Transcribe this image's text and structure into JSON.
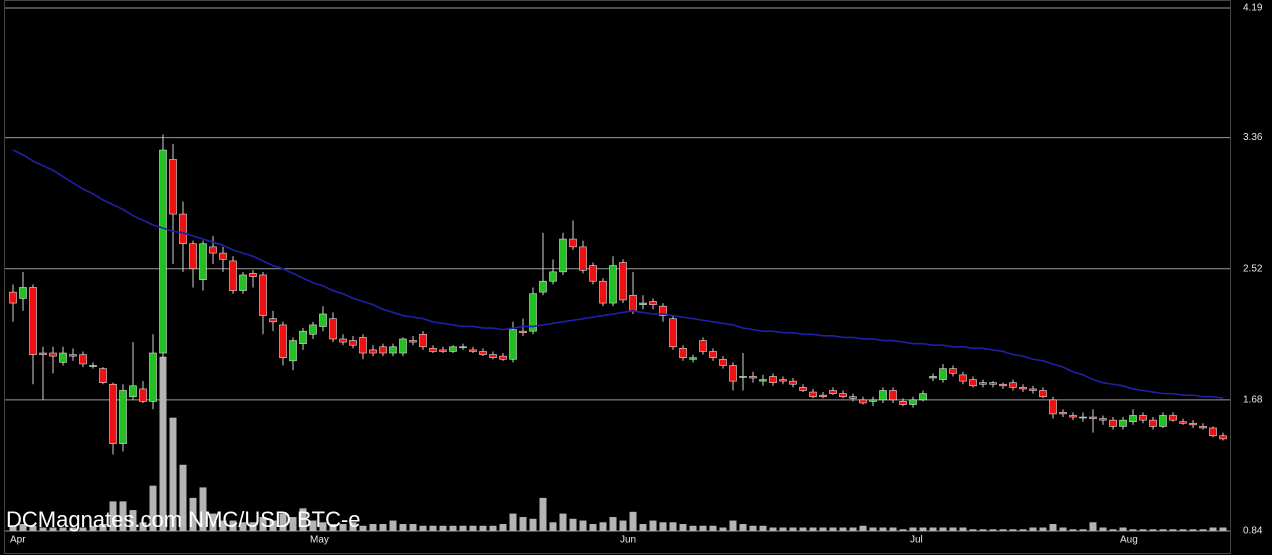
{
  "chart_data": {
    "type": "candlestick",
    "watermark": "DCMagnates.com  NMC/USD BTC-e",
    "categories": [
      "Apr",
      null,
      null,
      null,
      null,
      null,
      null,
      null,
      null,
      null,
      null,
      null,
      null,
      null,
      null,
      null,
      null,
      null,
      null,
      null,
      null,
      null,
      null,
      null,
      null,
      null,
      null,
      null,
      null,
      null,
      "May",
      null,
      null,
      null,
      null,
      null,
      null,
      null,
      null,
      null,
      null,
      null,
      null,
      null,
      null,
      null,
      null,
      null,
      null,
      null,
      null,
      null,
      null,
      null,
      null,
      null,
      null,
      null,
      null,
      null,
      null,
      "Jun",
      null,
      null,
      null,
      null,
      null,
      null,
      null,
      null,
      null,
      null,
      null,
      null,
      null,
      null,
      null,
      null,
      null,
      null,
      null,
      null,
      null,
      null,
      null,
      null,
      null,
      null,
      null,
      null,
      "Jul",
      null,
      null,
      null,
      null,
      null,
      null,
      null,
      null,
      null,
      null,
      null,
      null,
      null,
      null,
      null,
      null,
      null,
      null,
      null,
      null,
      "Aug",
      null,
      null,
      null,
      null,
      null,
      null,
      null,
      null,
      null,
      null
    ],
    "candles": [
      [
        2.37,
        2.42,
        2.18,
        2.3
      ],
      [
        2.33,
        2.5,
        2.25,
        2.4
      ],
      [
        2.4,
        2.42,
        1.78,
        1.97
      ],
      [
        1.98,
        2.02,
        1.68,
        1.97
      ],
      [
        1.98,
        2.02,
        1.85,
        1.96
      ],
      [
        1.92,
        2.02,
        1.9,
        1.98
      ],
      [
        1.97,
        2.01,
        1.93,
        1.96
      ],
      [
        1.97,
        1.99,
        1.89,
        1.91
      ],
      [
        1.9,
        1.92,
        1.88,
        1.9
      ],
      [
        1.88,
        1.89,
        1.78,
        1.79
      ],
      [
        1.78,
        1.79,
        1.33,
        1.4
      ],
      [
        1.4,
        1.78,
        1.35,
        1.74
      ],
      [
        1.7,
        2.05,
        1.68,
        1.77
      ],
      [
        1.75,
        1.8,
        1.66,
        1.67
      ],
      [
        1.67,
        2.1,
        1.62,
        1.98
      ],
      [
        1.98,
        3.38,
        1.95,
        3.28
      ],
      [
        3.22,
        3.32,
        2.55,
        2.87
      ],
      [
        2.87,
        2.95,
        2.5,
        2.68
      ],
      [
        2.68,
        2.7,
        2.4,
        2.52
      ],
      [
        2.45,
        2.7,
        2.38,
        2.68
      ],
      [
        2.66,
        2.73,
        2.55,
        2.62
      ],
      [
        2.62,
        2.66,
        2.5,
        2.58
      ],
      [
        2.57,
        2.6,
        2.36,
        2.38
      ],
      [
        2.38,
        2.5,
        2.36,
        2.48
      ],
      [
        2.49,
        2.51,
        2.4,
        2.47
      ],
      [
        2.48,
        2.5,
        2.1,
        2.22
      ],
      [
        2.2,
        2.25,
        2.12,
        2.18
      ],
      [
        2.16,
        2.18,
        1.9,
        1.95
      ],
      [
        1.93,
        2.08,
        1.87,
        2.06
      ],
      [
        2.04,
        2.14,
        2.0,
        2.12
      ],
      [
        2.1,
        2.18,
        2.07,
        2.16
      ],
      [
        2.15,
        2.28,
        2.12,
        2.23
      ],
      [
        2.2,
        2.24,
        2.05,
        2.07
      ],
      [
        2.07,
        2.1,
        2.03,
        2.05
      ],
      [
        2.06,
        2.09,
        2.01,
        2.03
      ],
      [
        2.08,
        2.1,
        1.94,
        1.98
      ],
      [
        2.0,
        2.03,
        1.96,
        1.98
      ],
      [
        2.02,
        2.04,
        1.96,
        1.98
      ],
      [
        1.98,
        2.04,
        1.96,
        2.02
      ],
      [
        1.98,
        2.08,
        1.96,
        2.07
      ],
      [
        2.06,
        2.09,
        2.03,
        2.05
      ],
      [
        2.1,
        2.12,
        2.0,
        2.02
      ],
      [
        2.01,
        2.03,
        1.98,
        1.99
      ],
      [
        2.0,
        2.02,
        1.98,
        1.99
      ],
      [
        1.99,
        2.03,
        1.98,
        2.02
      ],
      [
        2.02,
        2.04,
        2.0,
        2.02
      ],
      [
        2.0,
        2.02,
        1.98,
        1.99
      ],
      [
        1.99,
        2.01,
        1.96,
        1.97
      ],
      [
        1.97,
        1.99,
        1.94,
        1.95
      ],
      [
        1.96,
        1.98,
        1.93,
        1.94
      ],
      [
        1.94,
        2.18,
        1.92,
        2.13
      ],
      [
        2.12,
        2.2,
        2.09,
        2.11
      ],
      [
        2.12,
        2.4,
        2.1,
        2.36
      ],
      [
        2.37,
        2.75,
        2.35,
        2.44
      ],
      [
        2.44,
        2.58,
        2.42,
        2.5
      ],
      [
        2.5,
        2.75,
        2.48,
        2.71
      ],
      [
        2.71,
        2.83,
        2.64,
        2.66
      ],
      [
        2.66,
        2.7,
        2.49,
        2.51
      ],
      [
        2.54,
        2.56,
        2.42,
        2.44
      ],
      [
        2.44,
        2.46,
        2.28,
        2.3
      ],
      [
        2.3,
        2.6,
        2.28,
        2.54
      ],
      [
        2.56,
        2.58,
        2.3,
        2.32
      ],
      [
        2.35,
        2.5,
        2.23,
        2.25
      ],
      [
        2.29,
        2.35,
        2.26,
        2.3
      ],
      [
        2.31,
        2.33,
        2.26,
        2.29
      ],
      [
        2.28,
        2.3,
        2.18,
        2.22
      ],
      [
        2.2,
        2.22,
        2.0,
        2.02
      ],
      [
        2.01,
        2.03,
        1.93,
        1.95
      ],
      [
        1.94,
        1.97,
        1.92,
        1.95
      ],
      [
        2.06,
        2.08,
        1.97,
        1.99
      ],
      [
        1.99,
        2.01,
        1.93,
        1.95
      ],
      [
        1.94,
        1.96,
        1.88,
        1.9
      ],
      [
        1.9,
        1.92,
        1.74,
        1.8
      ],
      [
        1.83,
        1.98,
        1.74,
        1.83
      ],
      [
        1.83,
        1.86,
        1.79,
        1.82
      ],
      [
        1.8,
        1.84,
        1.77,
        1.81
      ],
      [
        1.83,
        1.85,
        1.77,
        1.79
      ],
      [
        1.81,
        1.83,
        1.78,
        1.8
      ],
      [
        1.8,
        1.82,
        1.76,
        1.78
      ],
      [
        1.76,
        1.78,
        1.73,
        1.74
      ],
      [
        1.73,
        1.75,
        1.69,
        1.7
      ],
      [
        1.71,
        1.73,
        1.69,
        1.7
      ],
      [
        1.74,
        1.76,
        1.71,
        1.72
      ],
      [
        1.72,
        1.74,
        1.69,
        1.7
      ],
      [
        1.7,
        1.72,
        1.67,
        1.69
      ],
      [
        1.68,
        1.7,
        1.65,
        1.66
      ],
      [
        1.67,
        1.7,
        1.64,
        1.68
      ],
      [
        1.68,
        1.76,
        1.66,
        1.74
      ],
      [
        1.74,
        1.76,
        1.66,
        1.68
      ],
      [
        1.67,
        1.69,
        1.64,
        1.65
      ],
      [
        1.65,
        1.7,
        1.63,
        1.68
      ],
      [
        1.68,
        1.74,
        1.67,
        1.72
      ],
      [
        1.82,
        1.85,
        1.8,
        1.83
      ],
      [
        1.81,
        1.91,
        1.79,
        1.88
      ],
      [
        1.88,
        1.9,
        1.83,
        1.85
      ],
      [
        1.84,
        1.86,
        1.78,
        1.8
      ],
      [
        1.81,
        1.83,
        1.76,
        1.77
      ],
      [
        1.79,
        1.81,
        1.76,
        1.78
      ],
      [
        1.79,
        1.8,
        1.76,
        1.78
      ],
      [
        1.78,
        1.79,
        1.75,
        1.77
      ],
      [
        1.79,
        1.81,
        1.74,
        1.76
      ],
      [
        1.76,
        1.78,
        1.73,
        1.75
      ],
      [
        1.75,
        1.77,
        1.72,
        1.74
      ],
      [
        1.74,
        1.76,
        1.69,
        1.7
      ],
      [
        1.68,
        1.7,
        1.56,
        1.59
      ],
      [
        1.6,
        1.62,
        1.57,
        1.59
      ],
      [
        1.58,
        1.6,
        1.55,
        1.57
      ],
      [
        1.57,
        1.6,
        1.54,
        1.57
      ],
      [
        1.57,
        1.62,
        1.47,
        1.56
      ],
      [
        1.56,
        1.58,
        1.52,
        1.55
      ],
      [
        1.55,
        1.57,
        1.49,
        1.51
      ],
      [
        1.51,
        1.57,
        1.49,
        1.55
      ],
      [
        1.54,
        1.62,
        1.52,
        1.58
      ],
      [
        1.58,
        1.6,
        1.53,
        1.55
      ],
      [
        1.55,
        1.57,
        1.49,
        1.51
      ],
      [
        1.51,
        1.6,
        1.5,
        1.58
      ],
      [
        1.58,
        1.6,
        1.54,
        1.55
      ],
      [
        1.54,
        1.56,
        1.52,
        1.53
      ],
      [
        1.53,
        1.55,
        1.5,
        1.52
      ],
      [
        1.51,
        1.53,
        1.49,
        1.5
      ],
      [
        1.5,
        1.51,
        1.44,
        1.45
      ],
      [
        1.45,
        1.47,
        1.42,
        1.43
      ]
    ],
    "up_color": "#22c022",
    "down_color": "#ee1111",
    "wick_color": "#d0d0d0",
    "volume": {
      "axis": "y2",
      "color": "#b4b4b4",
      "values": [
        3,
        4,
        3,
        2,
        2,
        2,
        2,
        2,
        3,
        4,
        17,
        17,
        12,
        5,
        26,
        100,
        65,
        38,
        19,
        25,
        10,
        6,
        6,
        5,
        5,
        8,
        6,
        10,
        8,
        13,
        6,
        5,
        4,
        4,
        5,
        3,
        4,
        4,
        6,
        4,
        4,
        3,
        3,
        3,
        3,
        3,
        3,
        3,
        3,
        4,
        10,
        8,
        7,
        19,
        5,
        10,
        7,
        6,
        4,
        5,
        8,
        6,
        11,
        4,
        6,
        5,
        5,
        4,
        3,
        3,
        3,
        2,
        6,
        4,
        3,
        3,
        2,
        2,
        2,
        2,
        2,
        2,
        2,
        2,
        2,
        3,
        2,
        2,
        2,
        1,
        2,
        2,
        2,
        2,
        2,
        2,
        1,
        1,
        1,
        1,
        1,
        1,
        2,
        2,
        4,
        2,
        1,
        1,
        5,
        2,
        1,
        2,
        1,
        1,
        1,
        1,
        1,
        1,
        1,
        1,
        2,
        2
      ]
    },
    "ma": {
      "color": "#2020a8",
      "values": [
        3.28,
        3.25,
        3.21,
        3.18,
        3.15,
        3.11,
        3.07,
        3.03,
        3.0,
        2.96,
        2.93,
        2.9,
        2.86,
        2.83,
        2.8,
        2.78,
        2.76,
        2.75,
        2.73,
        2.71,
        2.69,
        2.67,
        2.64,
        2.62,
        2.6,
        2.57,
        2.54,
        2.52,
        2.49,
        2.46,
        2.43,
        2.41,
        2.38,
        2.36,
        2.33,
        2.31,
        2.29,
        2.26,
        2.24,
        2.22,
        2.21,
        2.2,
        2.18,
        2.17,
        2.16,
        2.15,
        2.15,
        2.14,
        2.14,
        2.13,
        2.14,
        2.15,
        2.15,
        2.16,
        2.17,
        2.18,
        2.19,
        2.2,
        2.21,
        2.22,
        2.23,
        2.24,
        2.25,
        2.24,
        2.23,
        2.23,
        2.22,
        2.21,
        2.2,
        2.19,
        2.18,
        2.17,
        2.16,
        2.14,
        2.13,
        2.12,
        2.12,
        2.11,
        2.11,
        2.1,
        2.1,
        2.09,
        2.09,
        2.08,
        2.08,
        2.07,
        2.07,
        2.06,
        2.06,
        2.05,
        2.04,
        2.04,
        2.03,
        2.03,
        2.02,
        2.02,
        2.01,
        2.01,
        2.0,
        1.99,
        1.97,
        1.96,
        1.94,
        1.93,
        1.91,
        1.89,
        1.86,
        1.84,
        1.81,
        1.79,
        1.78,
        1.77,
        1.75,
        1.74,
        1.73,
        1.72,
        1.72,
        1.71,
        1.71,
        1.7,
        1.7,
        1.69
      ]
    },
    "ylim": [
      0.84,
      4.19
    ],
    "yticks": [
      4.19,
      3.36,
      2.52,
      1.68,
      0.84
    ],
    "y2lim": [
      0,
      300
    ],
    "grid": true
  }
}
